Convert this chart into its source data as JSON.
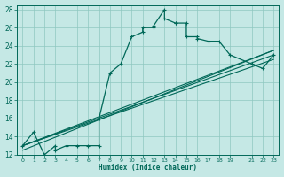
{
  "xlabel": "Humidex (Indice chaleur)",
  "ylabel": "",
  "bg_color": "#c5e8e5",
  "grid_color": "#8fc8c0",
  "line_color": "#006858",
  "xlim": [
    -0.5,
    23.5
  ],
  "ylim": [
    12,
    28.5
  ],
  "xtick_vals": [
    0,
    1,
    2,
    3,
    4,
    5,
    6,
    7,
    8,
    9,
    10,
    11,
    12,
    13,
    14,
    15,
    16,
    17,
    18,
    19,
    21,
    22,
    23
  ],
  "xtick_labels": [
    "0",
    "1",
    "2",
    "3",
    "4",
    "5",
    "6",
    "7",
    "8",
    "9",
    "10",
    "11",
    "12",
    "13",
    "14",
    "15",
    "16",
    "17",
    "18",
    "19",
    "21",
    "22",
    "23"
  ],
  "ytick_vals": [
    12,
    14,
    16,
    18,
    20,
    22,
    24,
    26,
    28
  ],
  "ytick_labels": [
    "12",
    "14",
    "16",
    "18",
    "20",
    "22",
    "24",
    "26",
    "28"
  ],
  "main_x": [
    0,
    1,
    2,
    3,
    3,
    4,
    5,
    6,
    7,
    7,
    8,
    9,
    10,
    11,
    11,
    12,
    12,
    13,
    13,
    14,
    14,
    15,
    15,
    16,
    16,
    17,
    18,
    19,
    21,
    22,
    23
  ],
  "main_y": [
    13,
    14.5,
    12,
    13,
    12.5,
    13,
    13,
    13,
    13,
    16,
    21,
    22,
    25,
    25.5,
    26,
    26,
    26.2,
    28,
    27,
    26.5,
    26.5,
    26.5,
    25,
    25,
    24.8,
    24.5,
    24.5,
    23,
    22,
    21.5,
    23
  ],
  "straight_lines": [
    {
      "x": [
        0,
        23
      ],
      "y": [
        13.0,
        22.5
      ]
    },
    {
      "x": [
        0,
        23
      ],
      "y": [
        13.0,
        23.0
      ]
    },
    {
      "x": [
        0,
        23
      ],
      "y": [
        13.0,
        23.5
      ]
    },
    {
      "x": [
        0,
        23
      ],
      "y": [
        12.5,
        23.5
      ]
    }
  ]
}
